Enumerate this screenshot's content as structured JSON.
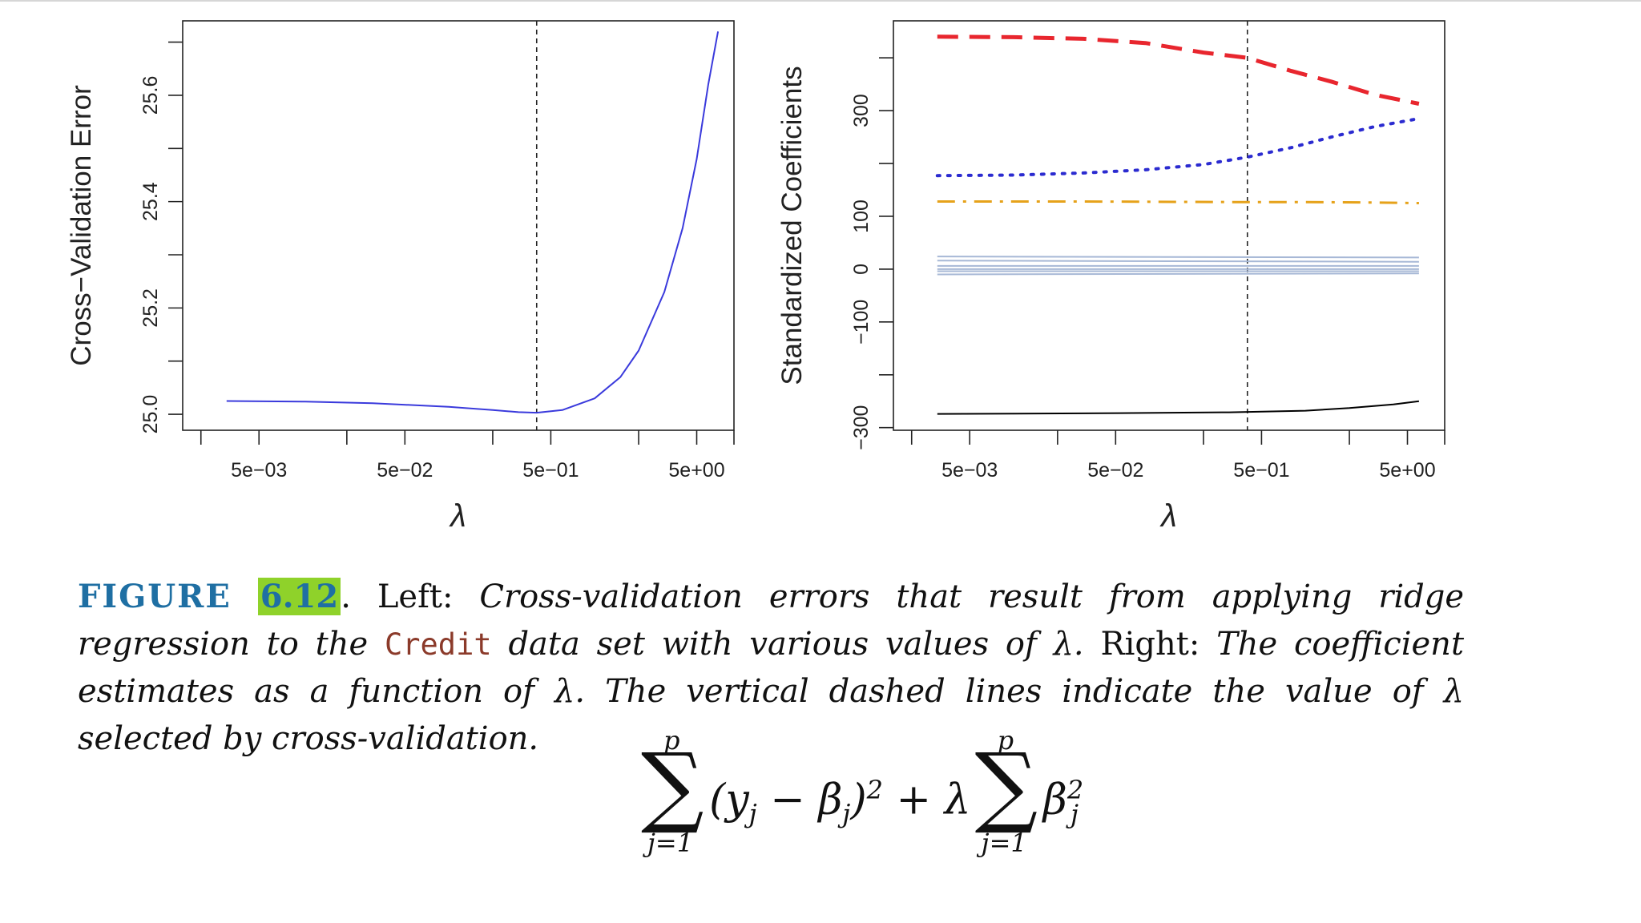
{
  "chart_data": [
    {
      "type": "line",
      "panel": "left",
      "ylabel": "Cross−Validation Error",
      "xlabel": "λ",
      "x_scale": "log",
      "x_ticks": [
        0.005,
        0.05,
        0.5,
        5
      ],
      "x_tick_labels": [
        "5e−03",
        "5e−02",
        "5e−01",
        "5e+00"
      ],
      "y_ticks": [
        25.0,
        25.2,
        25.4,
        25.6
      ],
      "y_tick_labels": [
        "25.0",
        "25.2",
        "25.4",
        "25.6"
      ],
      "xlim": [
        0.0015,
        9
      ],
      "ylim": [
        24.97,
        25.74
      ],
      "vline": 0.4,
      "series": [
        {
          "color": "#3a3adc",
          "style": "solid",
          "x": [
            0.003,
            0.01,
            0.03,
            0.1,
            0.2,
            0.3,
            0.4,
            0.6,
            1,
            1.5,
            2,
            3,
            4,
            5,
            6,
            7
          ],
          "y": [
            25.025,
            25.024,
            25.021,
            25.014,
            25.008,
            25.004,
            25.003,
            25.008,
            25.03,
            25.07,
            25.12,
            25.23,
            25.35,
            25.48,
            25.62,
            25.72
          ]
        }
      ]
    },
    {
      "type": "line",
      "panel": "right",
      "ylabel": "Standardized Coefficients",
      "xlabel": "λ",
      "x_scale": "log",
      "x_ticks": [
        0.005,
        0.05,
        0.5,
        5
      ],
      "x_tick_labels": [
        "5e−03",
        "5e−02",
        "5e−01",
        "5e+00"
      ],
      "y_ticks": [
        -300,
        -100,
        0,
        100,
        300
      ],
      "y_tick_labels": [
        "−300",
        "−100",
        "0",
        "100",
        "300"
      ],
      "xlim": [
        0.0015,
        9
      ],
      "ylim": [
        -305,
        470
      ],
      "vline": 0.4,
      "series": [
        {
          "color": "#e8262e",
          "style": "dashed",
          "x": [
            0.003,
            0.01,
            0.03,
            0.08,
            0.2,
            0.4,
            0.8,
            1.5,
            3,
            6
          ],
          "y": [
            440,
            439,
            436,
            428,
            410,
            400,
            375,
            355,
            330,
            313
          ]
        },
        {
          "color": "#2b2bd0",
          "style": "dotted",
          "x": [
            0.003,
            0.01,
            0.03,
            0.08,
            0.2,
            0.4,
            0.8,
            1.5,
            3,
            6
          ],
          "y": [
            177,
            178,
            182,
            188,
            198,
            212,
            230,
            250,
            270,
            285
          ]
        },
        {
          "color": "#e6a21a",
          "style": "dashdot",
          "x": [
            0.003,
            0.03,
            0.3,
            1,
            3,
            6
          ],
          "y": [
            128,
            128,
            127,
            127,
            126,
            125
          ]
        },
        {
          "color": "#a7b8d6",
          "style": "solid",
          "x": [
            0.003,
            6
          ],
          "y": [
            24,
            22
          ]
        },
        {
          "color": "#a7b8d6",
          "style": "solid",
          "x": [
            0.003,
            6
          ],
          "y": [
            16,
            14
          ]
        },
        {
          "color": "#a7b8d6",
          "style": "solid",
          "x": [
            0.003,
            6
          ],
          "y": [
            6,
            6
          ]
        },
        {
          "color": "#a7b8d6",
          "style": "solid",
          "x": [
            0.003,
            6
          ],
          "y": [
            0,
            0
          ]
        },
        {
          "color": "#a7b8d6",
          "style": "solid",
          "x": [
            0.003,
            6
          ],
          "y": [
            -4,
            -4
          ]
        },
        {
          "color": "#a7b8d6",
          "style": "solid",
          "x": [
            0.003,
            6
          ],
          "y": [
            -10,
            -8
          ]
        },
        {
          "color": "#000000",
          "style": "solid",
          "x": [
            0.003,
            0.03,
            0.3,
            1,
            2,
            4,
            6
          ],
          "y": [
            -274,
            -273,
            -271,
            -268,
            -263,
            -256,
            -250
          ]
        }
      ]
    }
  ],
  "caption": {
    "figure_label": "FIGURE",
    "figure_number": "6.12",
    "period": ".",
    "left_word": "Left:",
    "left_text_1": "Cross-validation errors that result from applying ridge regression to the",
    "dataset": "Credit",
    "left_text_2": "data set with various values of λ.",
    "right_word": "Right:",
    "right_text": "The coefficient estimates as a function of λ. The vertical dashed lines indicate the value of λ selected by cross-validation."
  },
  "formula": {
    "sum_upper": "p",
    "sum_lower": "j=1",
    "term1": "(y",
    "term1_sub": "j",
    "term1_mid": " − β",
    "term1_sub2": "j",
    "term1_end": ")",
    "term1_pow": "2",
    "plus_lambda": " + λ",
    "term2": "β",
    "term2_sub": "j",
    "term2_pow": "2"
  }
}
